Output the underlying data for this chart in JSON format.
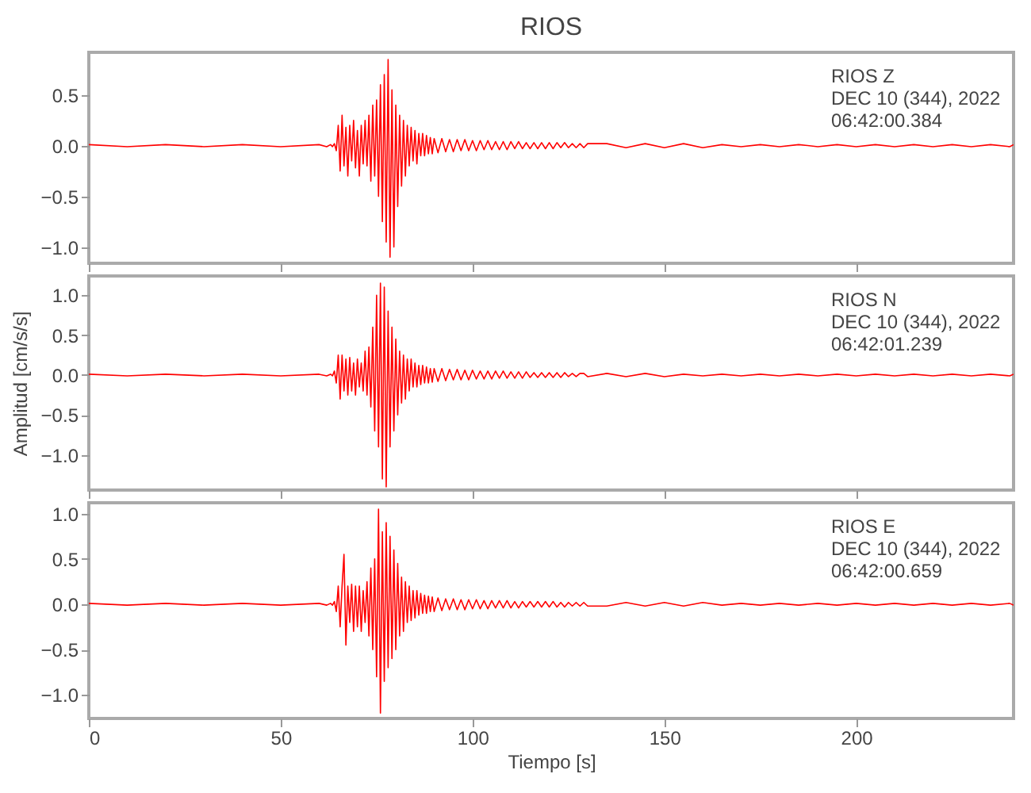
{
  "chart_data": [
    {
      "type": "line",
      "title": "RIOS",
      "tick_labels": "y",
      "x": [
        0,
        10,
        20,
        30,
        40,
        50,
        60,
        62,
        63,
        63.5,
        64,
        64.5,
        65,
        65.5,
        66,
        66.5,
        67,
        67.5,
        68,
        68.5,
        69,
        69.5,
        70,
        70.5,
        71,
        71.5,
        72,
        72.5,
        73,
        73.5,
        74,
        74.5,
        75,
        75.5,
        76,
        76.5,
        77,
        77.5,
        78,
        78.5,
        79,
        79.5,
        80,
        80.5,
        81,
        81.5,
        82,
        82.5,
        83,
        83.5,
        84,
        84.5,
        85,
        85.5,
        86,
        86.5,
        87,
        87.5,
        88,
        88.5,
        89,
        89.5,
        90,
        91,
        92,
        93,
        94,
        95,
        96,
        97,
        98,
        99,
        100,
        101,
        102,
        103,
        104,
        105,
        106,
        107,
        108,
        109,
        110,
        111,
        112,
        113,
        114,
        115,
        116,
        117,
        118,
        119,
        120,
        121,
        122,
        123,
        124,
        125,
        126,
        127,
        128,
        129,
        130,
        135,
        140,
        145,
        150,
        155,
        160,
        165,
        170,
        175,
        180,
        185,
        190,
        195,
        200,
        205,
        210,
        215,
        220,
        225,
        230,
        235,
        240,
        241
      ],
      "series": [
        {
          "color": "#ff0000",
          "values": [
            0.01,
            -0.01,
            0.01,
            -0.01,
            0.01,
            -0.01,
            0.01,
            -0.01,
            0.01,
            -0.01,
            0.02,
            -0.05,
            0.2,
            -0.25,
            0.3,
            -0.2,
            0.18,
            -0.3,
            0.2,
            -0.15,
            0.25,
            -0.22,
            0.15,
            -0.3,
            0.2,
            -0.18,
            0.25,
            -0.2,
            0.3,
            -0.35,
            0.4,
            -0.3,
            0.45,
            -0.5,
            0.6,
            -0.75,
            0.7,
            -0.95,
            0.85,
            -1.1,
            0.55,
            -1.0,
            0.4,
            -0.6,
            0.3,
            -0.4,
            0.25,
            -0.3,
            0.2,
            -0.2,
            0.18,
            -0.15,
            0.15,
            -0.18,
            0.12,
            -0.1,
            0.12,
            -0.1,
            0.1,
            -0.08,
            0.08,
            -0.08,
            0.07,
            -0.07,
            0.07,
            -0.06,
            0.06,
            -0.06,
            0.06,
            -0.05,
            0.06,
            -0.05,
            0.05,
            -0.05,
            0.05,
            -0.04,
            0.05,
            -0.04,
            0.04,
            -0.04,
            0.04,
            -0.04,
            0.04,
            -0.03,
            0.04,
            -0.03,
            0.03,
            -0.03,
            0.03,
            -0.03,
            0.03,
            -0.03,
            0.03,
            -0.03,
            0.03,
            -0.02,
            0.03,
            -0.02,
            0.02,
            -0.02,
            0.02,
            -0.02,
            0.02,
            0.02,
            -0.02,
            0.02,
            -0.02,
            0.02,
            -0.02,
            0.01,
            -0.01,
            0.01,
            -0.01,
            0.01,
            -0.01,
            0.01,
            -0.01,
            0.01,
            -0.01,
            0.01,
            -0.01,
            0.01,
            -0.01,
            0.01,
            -0.01,
            0.01
          ]
        }
      ],
      "xlim": [
        0,
        241
      ],
      "xticks": [
        0,
        50,
        100,
        150,
        200
      ],
      "ylim": [
        -1.16,
        0.92
      ],
      "yticks": [
        {
          "value": -1,
          "label": "−1.0"
        },
        {
          "value": -0.5,
          "label": "−0.5"
        },
        {
          "value": 0,
          "label": "0.0"
        },
        {
          "value": 0.5,
          "label": "0.5"
        }
      ],
      "annotations": [
        "RIOS   Z",
        "DEC 10 (344), 2022",
        "06:42:00.384"
      ]
    },
    {
      "type": "line",
      "ylabel": "Amplitud [cm/s/s]",
      "tick_labels": "y",
      "x": [
        0,
        10,
        20,
        30,
        40,
        50,
        60,
        62,
        63,
        63.5,
        64,
        64.5,
        65,
        65.5,
        66,
        66.5,
        67,
        67.5,
        68,
        68.5,
        69,
        69.5,
        70,
        70.5,
        71,
        71.5,
        72,
        72.5,
        73,
        73.5,
        74,
        74.5,
        75,
        75.5,
        76,
        76.5,
        77,
        77.5,
        78,
        78.5,
        79,
        79.5,
        80,
        80.5,
        81,
        81.5,
        82,
        82.5,
        83,
        83.5,
        84,
        84.5,
        85,
        85.5,
        86,
        86.5,
        87,
        87.5,
        88,
        88.5,
        89,
        89.5,
        90,
        91,
        92,
        93,
        94,
        95,
        96,
        97,
        98,
        99,
        100,
        101,
        102,
        103,
        104,
        105,
        106,
        107,
        108,
        109,
        110,
        111,
        112,
        113,
        114,
        115,
        116,
        117,
        118,
        119,
        120,
        121,
        122,
        123,
        124,
        125,
        126,
        127,
        128,
        129,
        130,
        135,
        140,
        145,
        150,
        155,
        160,
        165,
        170,
        175,
        180,
        185,
        190,
        195,
        200,
        205,
        210,
        215,
        220,
        225,
        230,
        235,
        240,
        241
      ],
      "series": [
        {
          "color": "#ff0000",
          "values": [
            0.01,
            -0.01,
            0.01,
            -0.01,
            0.01,
            -0.01,
            0.01,
            -0.01,
            0.01,
            -0.01,
            0.05,
            -0.1,
            0.25,
            -0.3,
            0.25,
            -0.2,
            0.2,
            -0.25,
            0.22,
            -0.2,
            0.15,
            -0.25,
            0.2,
            -0.15,
            0.15,
            -0.2,
            0.3,
            -0.25,
            0.35,
            -0.4,
            0.6,
            -0.7,
            1.0,
            -0.9,
            1.15,
            -1.3,
            1.1,
            -1.4,
            0.8,
            -0.9,
            0.6,
            -0.7,
            0.45,
            -0.5,
            0.3,
            -0.35,
            0.25,
            -0.3,
            0.2,
            -0.2,
            0.2,
            -0.15,
            0.15,
            -0.15,
            0.12,
            -0.12,
            0.12,
            -0.1,
            0.1,
            -0.1,
            0.08,
            -0.09,
            0.08,
            -0.08,
            0.08,
            -0.07,
            0.07,
            -0.06,
            0.07,
            -0.06,
            0.06,
            -0.06,
            0.06,
            -0.05,
            0.05,
            -0.05,
            0.05,
            -0.05,
            0.05,
            -0.04,
            0.05,
            -0.04,
            0.04,
            -0.04,
            0.04,
            -0.04,
            0.04,
            -0.03,
            0.03,
            -0.03,
            0.03,
            -0.03,
            0.03,
            -0.03,
            0.03,
            -0.03,
            0.03,
            -0.02,
            0.02,
            -0.02,
            0.02,
            0.02,
            -0.02,
            0.02,
            -0.02,
            0.02,
            -0.02,
            0.01,
            -0.01,
            0.01,
            -0.01,
            0.01,
            -0.01,
            0.01,
            -0.01,
            0.01,
            -0.01,
            0.01,
            -0.01,
            0.01,
            -0.01,
            0.01,
            -0.01,
            0.01,
            -0.01,
            0.01
          ]
        }
      ],
      "xlim": [
        0,
        241
      ],
      "xticks": [
        0,
        50,
        100,
        150,
        200
      ],
      "ylim": [
        -1.44,
        1.24
      ],
      "yticks": [
        {
          "value": -1,
          "label": "−1.0"
        },
        {
          "value": -0.5,
          "label": "−0.5"
        },
        {
          "value": 0,
          "label": "0.0"
        },
        {
          "value": 0.5,
          "label": "0.5"
        },
        {
          "value": 1,
          "label": "1.0"
        }
      ],
      "annotations": [
        "RIOS   N",
        "DEC 10 (344), 2022",
        "06:42:01.239"
      ]
    },
    {
      "type": "line",
      "xlabel": "Tiempo [s]",
      "x": [
        0,
        10,
        20,
        30,
        40,
        50,
        60,
        62,
        63,
        63.5,
        64,
        64.5,
        65,
        65.5,
        66,
        66.5,
        67,
        67.5,
        68,
        68.5,
        69,
        69.5,
        70,
        70.5,
        71,
        71.5,
        72,
        72.5,
        73,
        73.5,
        74,
        74.5,
        75,
        75.5,
        76,
        76.5,
        77,
        77.5,
        78,
        78.5,
        79,
        79.5,
        80,
        80.5,
        81,
        81.5,
        82,
        82.5,
        83,
        83.5,
        84,
        84.5,
        85,
        85.5,
        86,
        86.5,
        87,
        87.5,
        88,
        88.5,
        89,
        89.5,
        90,
        91,
        92,
        93,
        94,
        95,
        96,
        97,
        98,
        99,
        100,
        101,
        102,
        103,
        104,
        105,
        106,
        107,
        108,
        109,
        110,
        111,
        112,
        113,
        114,
        115,
        116,
        117,
        118,
        119,
        120,
        121,
        122,
        123,
        124,
        125,
        126,
        127,
        128,
        129,
        130,
        135,
        140,
        145,
        150,
        155,
        160,
        165,
        170,
        175,
        180,
        185,
        190,
        195,
        200,
        205,
        210,
        215,
        220,
        225,
        230,
        235,
        240,
        241
      ],
      "series": [
        {
          "color": "#ff0000",
          "values": [
            0.01,
            -0.01,
            0.01,
            -0.01,
            0.01,
            -0.01,
            0.01,
            -0.01,
            0.01,
            -0.01,
            0.03,
            -0.08,
            0.2,
            -0.25,
            0.2,
            0.55,
            -0.45,
            0.2,
            -0.2,
            0.22,
            -0.3,
            0.2,
            -0.25,
            0.2,
            -0.3,
            0.15,
            -0.2,
            0.25,
            -0.35,
            0.4,
            -0.5,
            0.5,
            -0.8,
            1.05,
            -1.2,
            0.8,
            -0.85,
            0.9,
            -0.7,
            0.75,
            -0.6,
            0.6,
            -0.5,
            0.45,
            -0.35,
            0.3,
            -0.3,
            0.25,
            -0.2,
            0.2,
            -0.18,
            0.15,
            -0.15,
            0.15,
            -0.12,
            0.12,
            -0.1,
            0.1,
            -0.1,
            0.09,
            -0.08,
            0.08,
            -0.08,
            0.07,
            -0.07,
            0.06,
            -0.06,
            0.06,
            -0.06,
            0.05,
            -0.06,
            0.05,
            -0.05,
            0.05,
            -0.05,
            0.04,
            -0.05,
            0.04,
            -0.04,
            0.04,
            -0.04,
            0.04,
            -0.04,
            0.03,
            -0.04,
            0.03,
            -0.03,
            0.03,
            -0.03,
            0.03,
            -0.03,
            0.03,
            -0.03,
            0.03,
            -0.03,
            0.02,
            -0.03,
            0.02,
            -0.02,
            0.02,
            -0.02,
            0.02,
            -0.02,
            -0.02,
            0.02,
            -0.02,
            0.02,
            -0.02,
            0.02,
            -0.01,
            0.01,
            -0.01,
            0.01,
            -0.01,
            0.01,
            -0.01,
            0.01,
            -0.01,
            0.01,
            -0.01,
            0.01,
            -0.01,
            0.01,
            -0.01,
            0.01,
            -0.01
          ]
        }
      ],
      "xlim": [
        0,
        241
      ],
      "xticks": [
        0,
        50,
        100,
        150,
        200
      ],
      "ylim": [
        -1.26,
        1.12
      ],
      "yticks": [
        {
          "value": -1,
          "label": "−1.0"
        },
        {
          "value": -0.5,
          "label": "−0.5"
        },
        {
          "value": 0,
          "label": "0.0"
        },
        {
          "value": 0.5,
          "label": "0.5"
        },
        {
          "value": 1,
          "label": "1.0"
        }
      ],
      "annotations": [
        "RIOS   E",
        "DEC 10 (344), 2022",
        "06:42:00.659"
      ]
    }
  ]
}
